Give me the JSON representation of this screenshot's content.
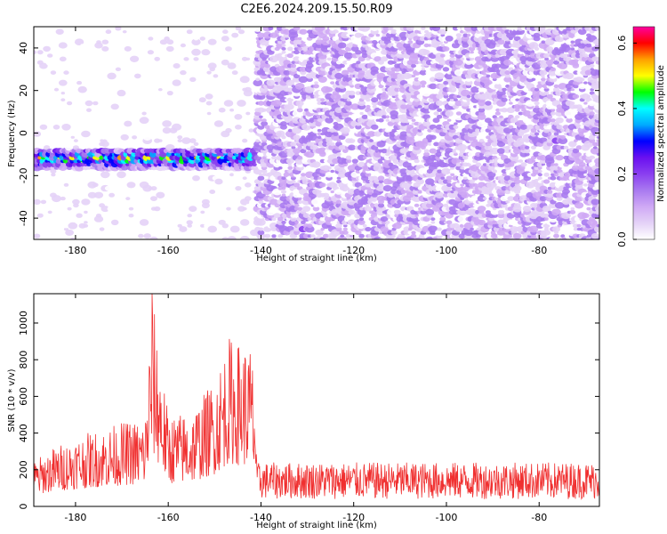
{
  "figure": {
    "title": "C2E6.2024.209.15.50.R09"
  },
  "colors": {
    "snr_line": "#f03030",
    "colormap": [
      "#ffffff",
      "#e4d2f7",
      "#cfa9f5",
      "#a97af0",
      "#8a3ff0",
      "#6a10f0",
      "#0000ff",
      "#00aaff",
      "#00ffff",
      "#00ff00",
      "#ffff00",
      "#ffa000",
      "#ff0000",
      "#ff00a0"
    ]
  },
  "chart_data": [
    {
      "type": "heatmap",
      "xlabel": "Height of straight line (km)",
      "ylabel": "Frequency (Hz)",
      "xlim": [
        -189,
        -67
      ],
      "ylim": [
        -50,
        50
      ],
      "xticks": [
        -180,
        -160,
        -140,
        -120,
        -100,
        -80
      ],
      "yticks": [
        -40,
        -20,
        0,
        20,
        40
      ],
      "colorbar": {
        "label": "Normalized spectral amplitude",
        "range": [
          0.0,
          0.65
        ],
        "ticks": [
          0.0,
          0.2,
          0.4,
          0.6
        ]
      },
      "band": {
        "x_start": -189,
        "x_end": -141,
        "freq_center": -12,
        "freq_halfwidth": 5,
        "peak_amplitude": 0.6
      },
      "background_region": {
        "x_start": -141,
        "x_end": -67,
        "amplitude": 0.2
      }
    },
    {
      "type": "line",
      "xlabel": "Height of straight line (km)",
      "ylabel": "SNR (10 * v/v)",
      "xlim": [
        -189,
        -67
      ],
      "ylim": [
        0,
        1160
      ],
      "xticks": [
        -180,
        -160,
        -140,
        -120,
        -100,
        -80
      ],
      "yticks": [
        0,
        200,
        400,
        600,
        800,
        1000
      ],
      "series": [
        {
          "x": [
            -189,
            -185,
            -180,
            -175,
            -170,
            -165,
            -163.5,
            -160,
            -155,
            -150,
            -147,
            -145,
            -142,
            -140,
            -135,
            -130,
            -120,
            -110,
            -100,
            -90,
            -80,
            -70,
            -67
          ],
          "values": [
            250,
            320,
            380,
            420,
            460,
            480,
            1160,
            500,
            520,
            700,
            930,
            900,
            880,
            150,
            130,
            130,
            140,
            130,
            140,
            130,
            140,
            130,
            140
          ]
        }
      ]
    }
  ]
}
